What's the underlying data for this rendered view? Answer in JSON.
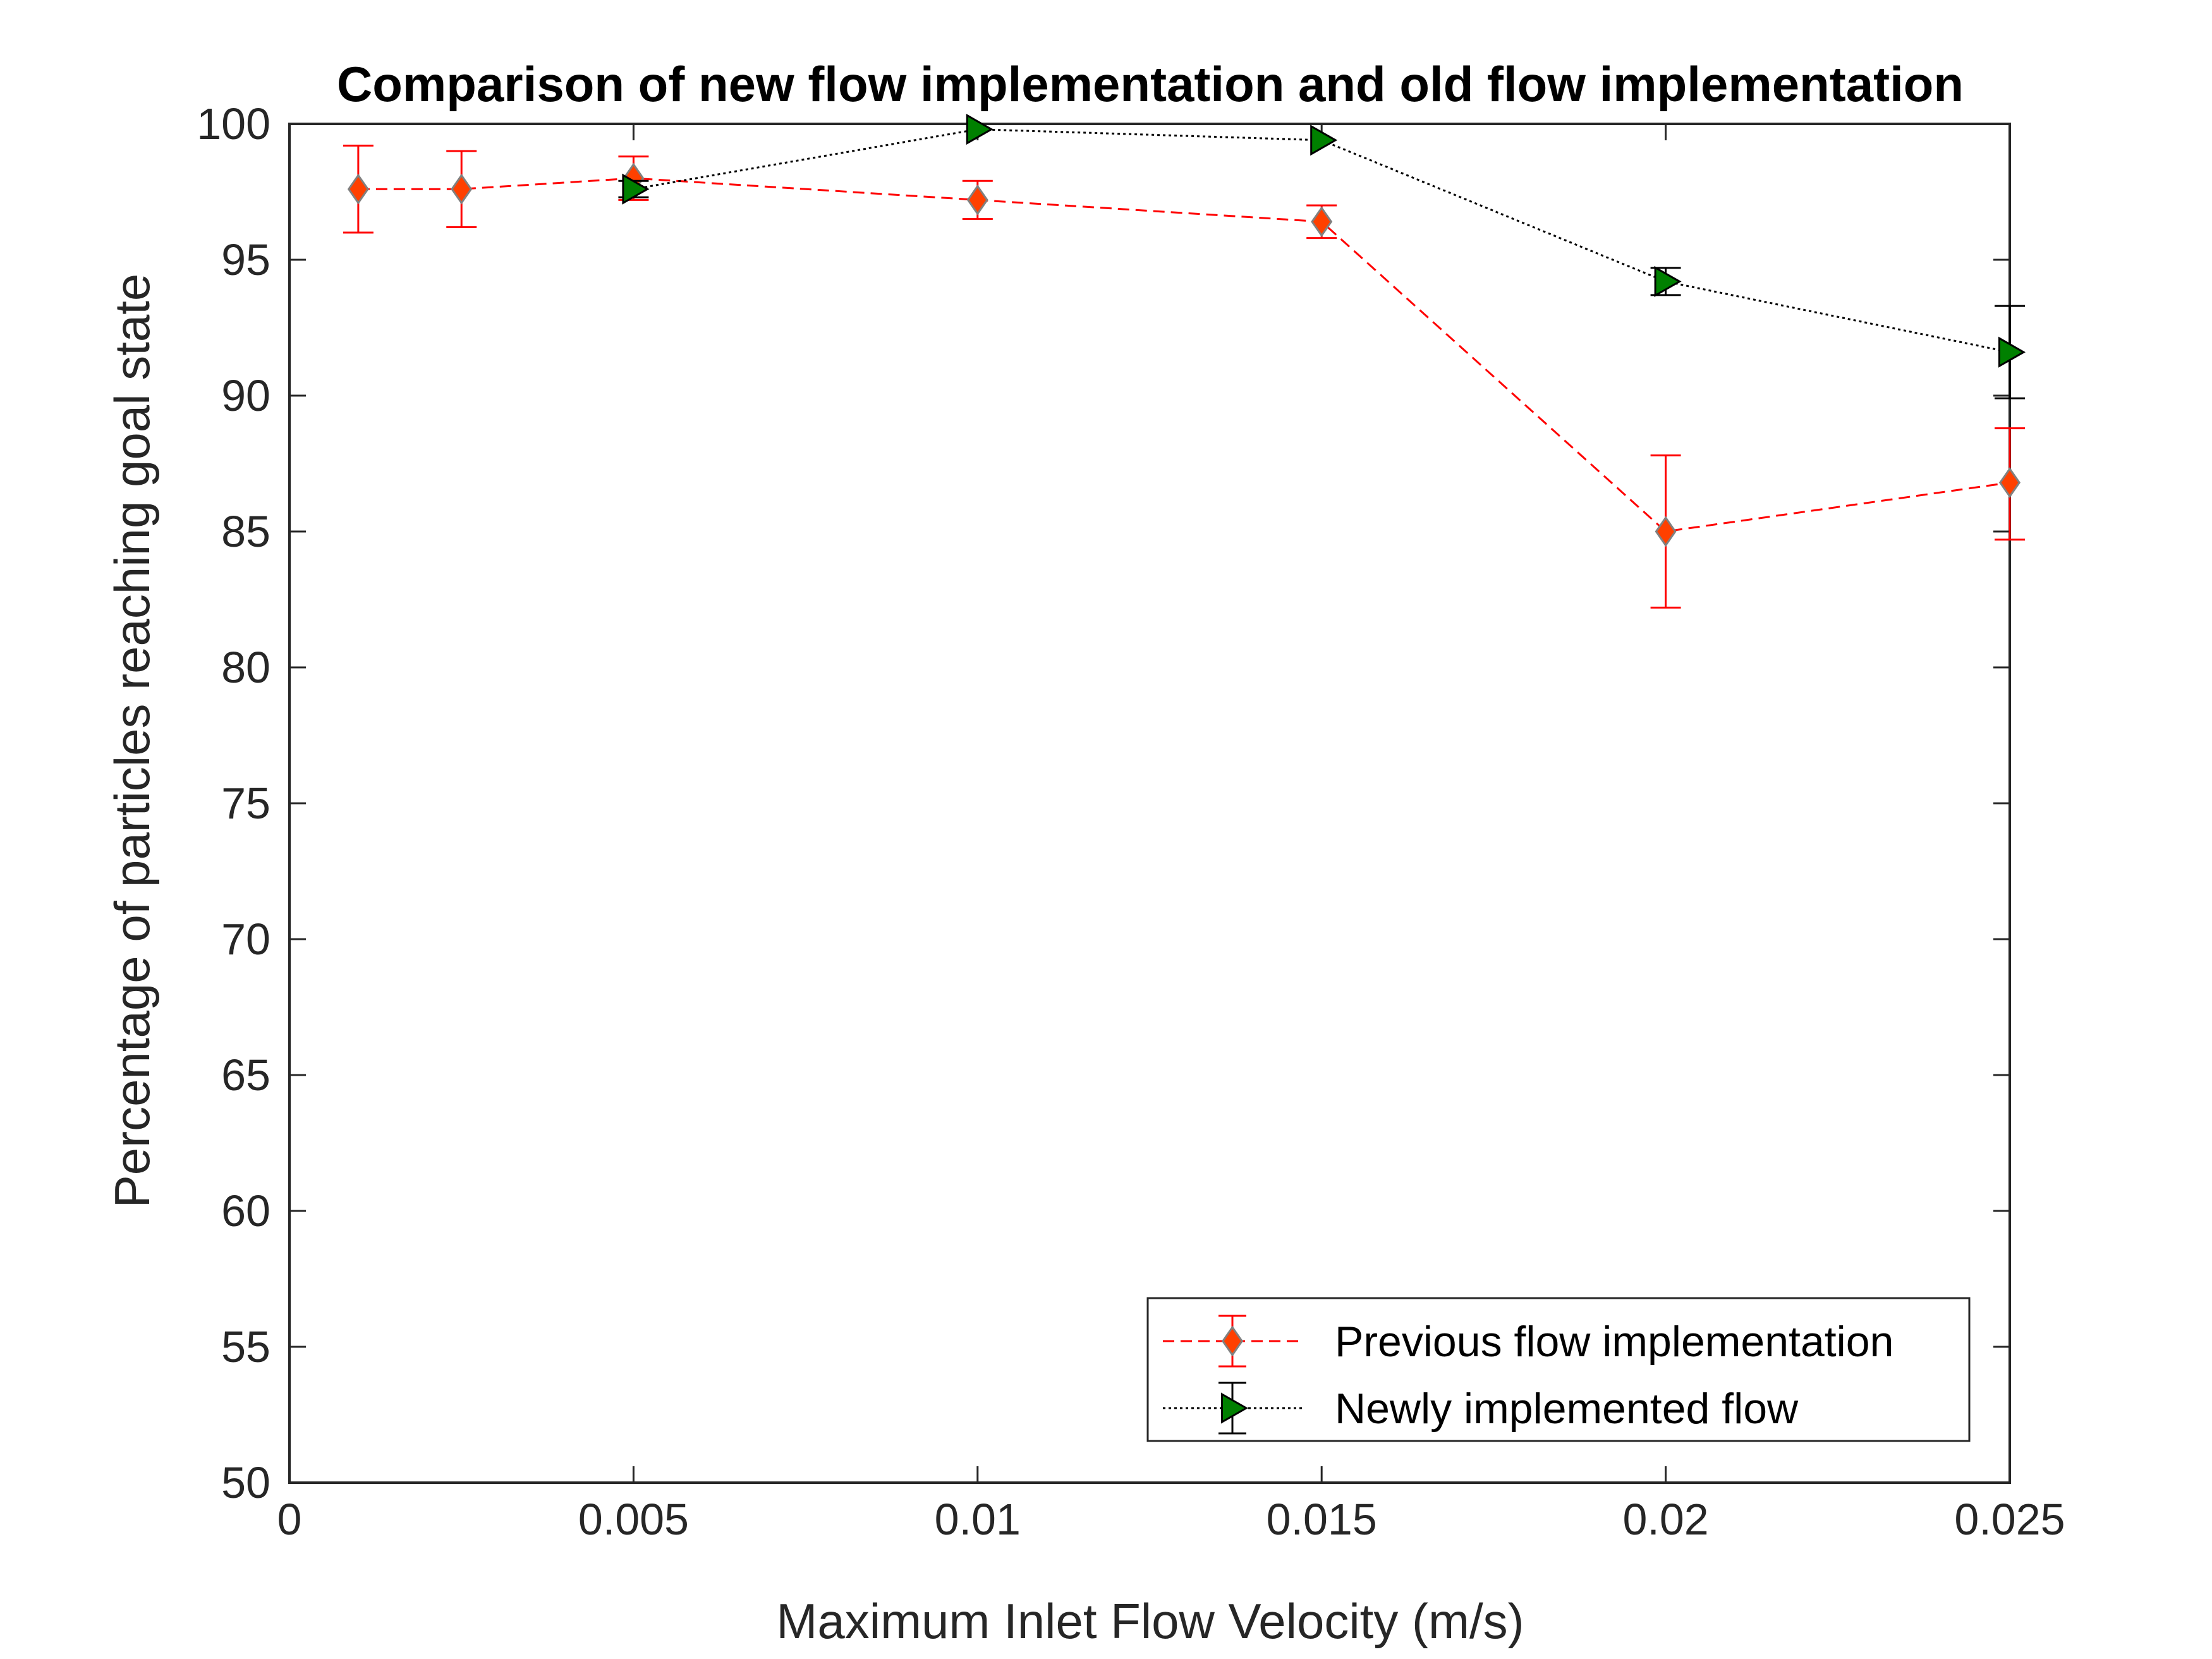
{
  "chart_data": {
    "type": "line",
    "title": "Comparison of new flow implementation and old flow implementation",
    "xlabel": "Maximum Inlet Flow Velocity (m/s)",
    "ylabel": "Percentage of particles reaching goal state",
    "xlim": [
      0,
      0.025
    ],
    "ylim": [
      50,
      100
    ],
    "xticks": [
      0,
      0.005,
      0.01,
      0.015,
      0.02,
      0.025
    ],
    "xtick_labels": [
      "0",
      "0.005",
      "0.01",
      "0.015",
      "0.02",
      "0.025"
    ],
    "yticks": [
      50,
      55,
      60,
      65,
      70,
      75,
      80,
      85,
      90,
      95,
      100
    ],
    "ytick_labels": [
      "50",
      "55",
      "60",
      "65",
      "70",
      "75",
      "80",
      "85",
      "90",
      "95",
      "100"
    ],
    "grid": true,
    "legend_position": "bottom-right",
    "series": [
      {
        "name": "Previous flow implementation",
        "line_style": "dashed",
        "marker": "diamond",
        "line_color": "#ff0000",
        "marker_fill": "#ff4000",
        "marker_edge": "#808080",
        "x": [
          0.001,
          0.0025,
          0.005,
          0.01,
          0.015,
          0.02,
          0.025
        ],
        "y": [
          97.6,
          97.6,
          98.0,
          97.2,
          96.4,
          85.0,
          86.8
        ],
        "err_low": [
          1.6,
          1.4,
          0.8,
          0.7,
          0.6,
          2.8,
          2.1
        ],
        "err_high": [
          1.6,
          1.4,
          0.8,
          0.7,
          0.6,
          2.8,
          2.0
        ]
      },
      {
        "name": "Newly implemented flow",
        "line_style": "dotted",
        "marker": "triangle-right",
        "line_color": "#000000",
        "marker_fill": "#008000",
        "marker_edge": "#000000",
        "x": [
          0.005,
          0.01,
          0.015,
          0.02,
          0.025
        ],
        "y": [
          97.6,
          99.8,
          99.4,
          94.2,
          91.6
        ],
        "err_low": [
          0.3,
          0.0,
          0.0,
          0.5,
          1.7
        ],
        "err_high": [
          0.3,
          0.0,
          0.0,
          0.5,
          1.7
        ]
      }
    ]
  }
}
